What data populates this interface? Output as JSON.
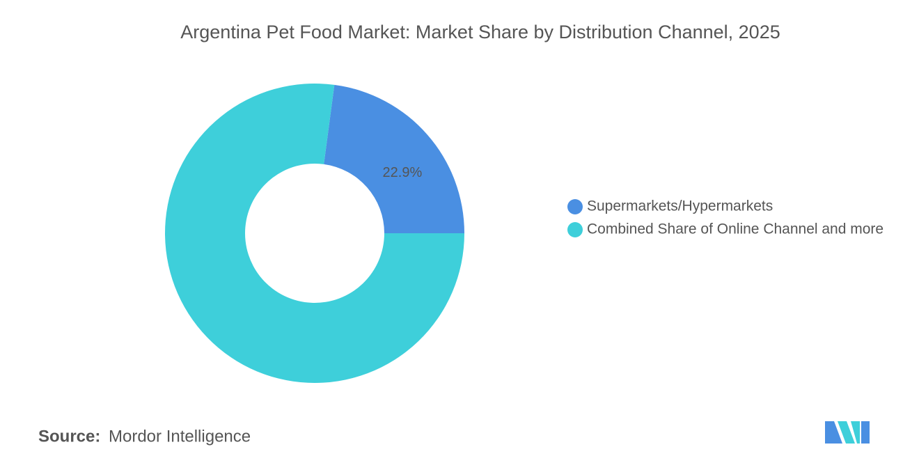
{
  "chart_data": {
    "type": "donut",
    "title": "Argentina Pet Food Market: Market Share by Distribution Channel, 2025",
    "categories": [
      "Supermarkets/Hypermarkets",
      "Combined Share of Online Channel and more"
    ],
    "values": [
      22.9,
      77.1
    ],
    "value_labels": [
      "22.9%",
      null
    ],
    "colors": [
      "#4a8fe2",
      "#3ecfda"
    ],
    "source_label": "Source:",
    "source": "Mordor Intelligence"
  }
}
